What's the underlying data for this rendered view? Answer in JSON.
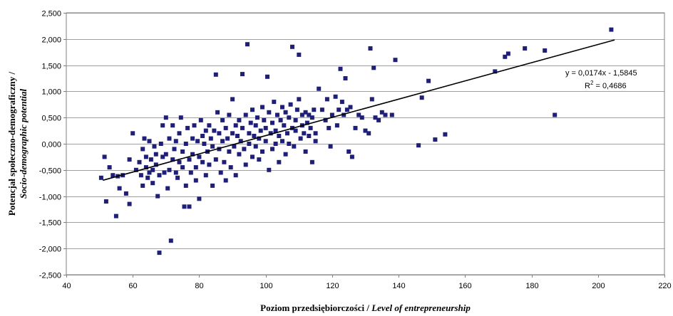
{
  "chart_data": {
    "type": "scatter",
    "xlabel_pl": "Poziom przedsiębiorczości / ",
    "xlabel_en": "Level of entrepreneurship",
    "ylabel_pl": "Potencjał społeczno-demograficzny / ",
    "ylabel_en": "Socio-demographic potential",
    "xlim": [
      40,
      220
    ],
    "ylim": [
      -2.5,
      2.5
    ],
    "x_ticks": [
      40,
      60,
      80,
      100,
      120,
      140,
      160,
      180,
      200,
      220
    ],
    "x_tick_labels": [
      "40",
      "60",
      "80",
      "100",
      "120",
      "140",
      "160",
      "180",
      "200",
      "220"
    ],
    "y_ticks": [
      2.5,
      2.0,
      1.5,
      1.0,
      0.5,
      0.0,
      -0.5,
      -1.0,
      -1.5,
      -2.0,
      -2.5
    ],
    "y_tick_labels": [
      "2,500",
      "2,000",
      "1,500",
      "1,000",
      "0,500",
      "0,000",
      "-0,500",
      "-1,000",
      "-1,500",
      "-2,000",
      "-2,500"
    ],
    "grid": "horizontal",
    "trendline": {
      "slope": 0.0174,
      "intercept": -1.5845,
      "x_start": 51,
      "x_end": 205
    },
    "equation_line1": "y = 0,0174x - 1,5845",
    "equation_line2_base": "R",
    "equation_line2_sup": "2",
    "equation_line2_rest": " = 0,4686",
    "marker_color": "#1f1f7a",
    "points": [
      [
        50.5,
        -0.65
      ],
      [
        51.5,
        -0.25
      ],
      [
        52,
        -1.1
      ],
      [
        53,
        -0.45
      ],
      [
        54,
        -0.6
      ],
      [
        55,
        -1.38
      ],
      [
        55.5,
        -0.62
      ],
      [
        56,
        -0.85
      ],
      [
        57,
        -0.6
      ],
      [
        58,
        -0.95
      ],
      [
        59,
        -0.3
      ],
      [
        59,
        -1.15
      ],
      [
        60,
        0.2
      ],
      [
        61,
        -0.5
      ],
      [
        62,
        -0.35
      ],
      [
        62.5,
        -0.6
      ],
      [
        63,
        -0.8
      ],
      [
        63,
        -0.1
      ],
      [
        63.5,
        0.1
      ],
      [
        64,
        -0.25
      ],
      [
        64,
        -0.45
      ],
      [
        64.5,
        -0.65
      ],
      [
        65,
        -0.55
      ],
      [
        65,
        0.05
      ],
      [
        65.5,
        -0.3
      ],
      [
        66,
        -0.75
      ],
      [
        66,
        -0.5
      ],
      [
        66.5,
        -0.05
      ],
      [
        67,
        -0.2
      ],
      [
        67,
        -0.4
      ],
      [
        67.5,
        -1.0
      ],
      [
        68,
        -0.6
      ],
      [
        68,
        -2.08
      ],
      [
        68.5,
        0.0
      ],
      [
        69,
        -0.25
      ],
      [
        69,
        0.35
      ],
      [
        69.5,
        -0.55
      ],
      [
        70,
        0.5
      ],
      [
        70,
        -0.2
      ],
      [
        70.5,
        -0.85
      ],
      [
        71,
        0.1
      ],
      [
        71,
        -0.5
      ],
      [
        71.5,
        -1.85
      ],
      [
        72,
        -0.3
      ],
      [
        72,
        0.35
      ],
      [
        72.5,
        -0.1
      ],
      [
        73,
        -0.55
      ],
      [
        73,
        0.05
      ],
      [
        73.5,
        -0.65
      ],
      [
        74,
        0.2
      ],
      [
        74,
        -0.35
      ],
      [
        74.5,
        0.5
      ],
      [
        75,
        -0.15
      ],
      [
        75,
        -0.45
      ],
      [
        75.5,
        -1.2
      ],
      [
        76,
        0.0
      ],
      [
        76,
        -0.8
      ],
      [
        76.5,
        0.3
      ],
      [
        77,
        -0.3
      ],
      [
        77,
        -1.2
      ],
      [
        77.5,
        -0.55
      ],
      [
        78,
        0.1
      ],
      [
        78,
        -0.2
      ],
      [
        78.5,
        0.35
      ],
      [
        79,
        -0.7
      ],
      [
        79,
        -0.45
      ],
      [
        79.5,
        0.05
      ],
      [
        80,
        -0.25
      ],
      [
        80,
        -1.05
      ],
      [
        80.5,
        0.45
      ],
      [
        81,
        -0.35
      ],
      [
        81,
        0.15
      ],
      [
        81.5,
        0.0
      ],
      [
        82,
        -0.6
      ],
      [
        82,
        0.25
      ],
      [
        82.5,
        -0.15
      ],
      [
        83,
        0.35
      ],
      [
        83,
        -0.4
      ],
      [
        83.5,
        0.1
      ],
      [
        84,
        -0.8
      ],
      [
        84,
        -0.05
      ],
      [
        84.5,
        0.25
      ],
      [
        85,
        1.32
      ],
      [
        85,
        -0.3
      ],
      [
        85.5,
        0.6
      ],
      [
        86,
        -0.1
      ],
      [
        86,
        0.2
      ],
      [
        86.5,
        -0.55
      ],
      [
        87,
        0.45
      ],
      [
        87,
        0.05
      ],
      [
        87.5,
        -0.35
      ],
      [
        88,
        0.3
      ],
      [
        88,
        -0.7
      ],
      [
        88.5,
        0.1
      ],
      [
        89,
        -0.15
      ],
      [
        89,
        0.55
      ],
      [
        89.5,
        -0.45
      ],
      [
        90,
        0.85
      ],
      [
        90,
        0.2
      ],
      [
        90.5,
        -0.05
      ],
      [
        91,
        0.35
      ],
      [
        91,
        -0.6
      ],
      [
        91.5,
        0.15
      ],
      [
        92,
        0.45
      ],
      [
        92,
        -0.2
      ],
      [
        92.5,
        0.05
      ],
      [
        93,
        1.33
      ],
      [
        93,
        0.3
      ],
      [
        93.5,
        -0.1
      ],
      [
        94,
        0.55
      ],
      [
        94,
        -0.4
      ],
      [
        94.5,
        1.9
      ],
      [
        95,
        0.2
      ],
      [
        95,
        0.0
      ],
      [
        95.5,
        0.4
      ],
      [
        96,
        -0.25
      ],
      [
        96,
        0.65
      ],
      [
        96.5,
        0.15
      ],
      [
        97,
        -0.05
      ],
      [
        97,
        0.35
      ],
      [
        97.5,
        0.5
      ],
      [
        98,
        -0.3
      ],
      [
        98,
        0.1
      ],
      [
        98.5,
        0.25
      ],
      [
        99,
        0.7
      ],
      [
        99,
        -0.15
      ],
      [
        99.5,
        0.45
      ],
      [
        100,
        0.05
      ],
      [
        100,
        0.3
      ],
      [
        100.5,
        1.28
      ],
      [
        101,
        -0.5
      ],
      [
        101,
        0.6
      ],
      [
        101.5,
        0.2
      ],
      [
        102,
        -0.1
      ],
      [
        102,
        0.4
      ],
      [
        102.5,
        0.8
      ],
      [
        103,
        0.0
      ],
      [
        103,
        0.25
      ],
      [
        103.5,
        0.55
      ],
      [
        104,
        -0.35
      ],
      [
        104,
        0.15
      ],
      [
        104.5,
        0.45
      ],
      [
        105,
        0.7
      ],
      [
        105,
        0.05
      ],
      [
        105.5,
        0.35
      ],
      [
        106,
        0.6
      ],
      [
        106,
        -0.2
      ],
      [
        106.5,
        0.2
      ],
      [
        107,
        0.5
      ],
      [
        107,
        0.0
      ],
      [
        107.5,
        0.75
      ],
      [
        108,
        1.85
      ],
      [
        108,
        0.3
      ],
      [
        108.5,
        -0.05
      ],
      [
        109,
        0.45
      ],
      [
        109,
        0.25
      ],
      [
        109.5,
        0.65
      ],
      [
        110,
        1.7
      ],
      [
        110,
        0.85
      ],
      [
        110.5,
        0.1
      ],
      [
        111,
        0.55
      ],
      [
        111,
        0.35
      ],
      [
        111.5,
        0.2
      ],
      [
        112,
        0.6
      ],
      [
        112,
        -0.15
      ],
      [
        112.5,
        0.4
      ],
      [
        113,
        0.15
      ],
      [
        113,
        0.55
      ],
      [
        113.5,
        0.3
      ],
      [
        114,
        0.5
      ],
      [
        114,
        -0.35
      ],
      [
        114.5,
        0.65
      ],
      [
        115,
        0.05
      ],
      [
        115,
        0.2
      ],
      [
        116,
        1.05
      ],
      [
        117,
        0.65
      ],
      [
        118,
        0.45
      ],
      [
        118.5,
        0.85
      ],
      [
        119,
        0.3
      ],
      [
        119.5,
        -0.05
      ],
      [
        120,
        0.55
      ],
      [
        121,
        0.9
      ],
      [
        121.5,
        0.35
      ],
      [
        122,
        0.65
      ],
      [
        122.5,
        1.43
      ],
      [
        123,
        0.8
      ],
      [
        123.5,
        0.55
      ],
      [
        124,
        1.25
      ],
      [
        124.5,
        0.65
      ],
      [
        125,
        -0.15
      ],
      [
        125.5,
        0.7
      ],
      [
        126,
        -0.25
      ],
      [
        127,
        0.3
      ],
      [
        128,
        0.55
      ],
      [
        129,
        0.5
      ],
      [
        130,
        0.25
      ],
      [
        131,
        0.2
      ],
      [
        131.5,
        1.82
      ],
      [
        132,
        0.85
      ],
      [
        132.5,
        1.45
      ],
      [
        133,
        0.5
      ],
      [
        134,
        0.45
      ],
      [
        135,
        0.6
      ],
      [
        136,
        0.55
      ],
      [
        138,
        0.55
      ],
      [
        139,
        1.6
      ],
      [
        146,
        -0.03
      ],
      [
        147,
        0.88
      ],
      [
        149,
        1.2
      ],
      [
        151,
        0.08
      ],
      [
        154,
        0.18
      ],
      [
        169,
        1.38
      ],
      [
        172,
        1.66
      ],
      [
        173,
        1.72
      ],
      [
        178,
        1.82
      ],
      [
        184,
        1.78
      ],
      [
        187,
        0.55
      ],
      [
        204,
        2.18
      ]
    ]
  }
}
